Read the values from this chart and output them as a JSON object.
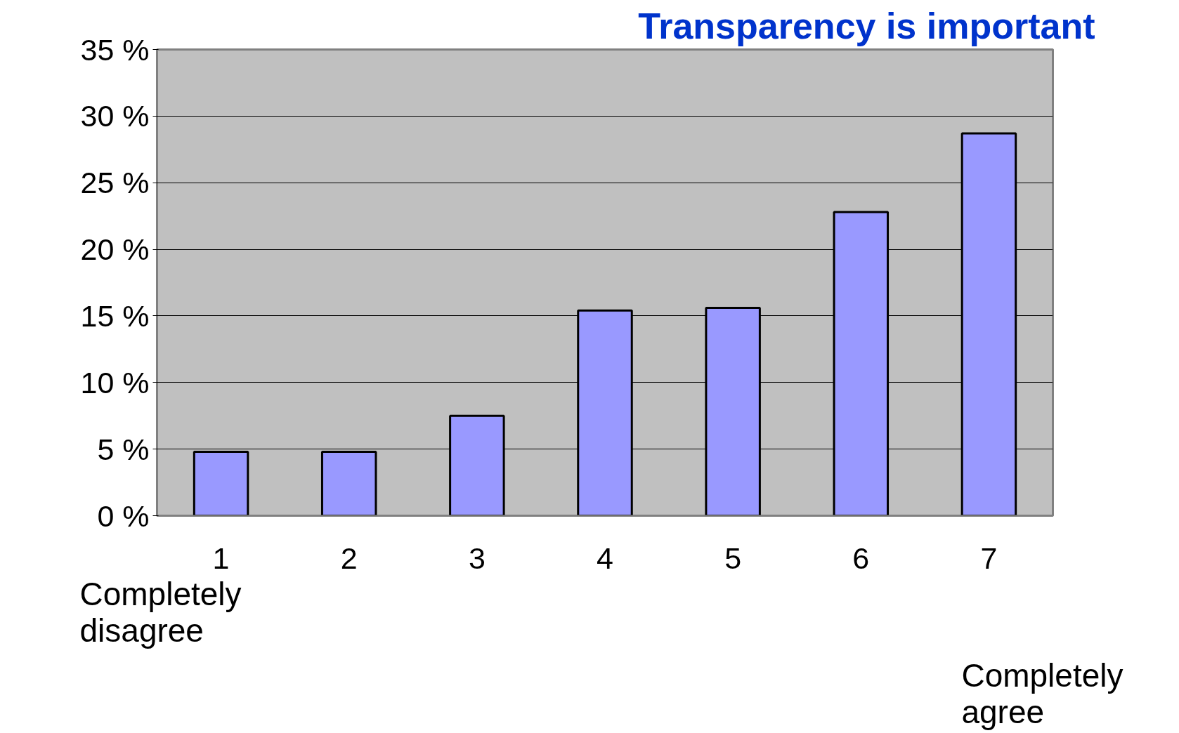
{
  "chart_data": {
    "type": "bar",
    "title": "Transparency is important",
    "categories": [
      "1",
      "2",
      "3",
      "4",
      "5",
      "6",
      "7"
    ],
    "values": [
      4.8,
      4.8,
      7.5,
      15.4,
      15.6,
      22.8,
      28.7
    ],
    "color": "#9999ff",
    "ylim": [
      0,
      35
    ],
    "yticks": [
      {
        "value": 0,
        "label": "0 %"
      },
      {
        "value": 5,
        "label": "5 %"
      },
      {
        "value": 10,
        "label": "10 %"
      },
      {
        "value": 15,
        "label": "15 %"
      },
      {
        "value": 20,
        "label": "20 %"
      },
      {
        "value": 25,
        "label": "25 %"
      },
      {
        "value": 30,
        "label": "30 %"
      },
      {
        "value": 35,
        "label": "35 %"
      }
    ],
    "grid": "y",
    "annotations": [
      "Completely disagree",
      "Completely agree"
    ]
  }
}
